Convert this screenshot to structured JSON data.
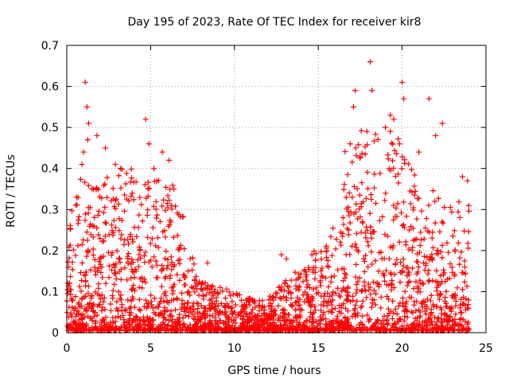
{
  "chart_data": {
    "type": "scatter",
    "title": "Day 195 of 2023, Rate Of TEC Index for receiver kir8",
    "xlabel": "GPS time / hours",
    "ylabel": "ROTI / TECUs",
    "xlim": [
      0,
      25
    ],
    "ylim": [
      0,
      0.7
    ],
    "xticks": [
      "0",
      "5",
      "10",
      "15",
      "20",
      "25"
    ],
    "yticks": [
      "0",
      "0.1",
      "0.2",
      "0.3",
      "0.4",
      "0.5",
      "0.6",
      "0.7"
    ],
    "grid": true,
    "marker": "+",
    "color": "#ff0000",
    "series": [
      {
        "values_note_excluded": true,
        "points": [
          [
            1.1,
            0.61
          ],
          [
            1.2,
            0.55
          ],
          [
            1.3,
            0.51
          ],
          [
            1.25,
            0.47
          ],
          [
            1.0,
            0.44
          ],
          [
            0.9,
            0.41
          ],
          [
            1.8,
            0.48
          ],
          [
            2.3,
            0.45
          ],
          [
            2.9,
            0.41
          ],
          [
            3.2,
            0.4
          ],
          [
            4.7,
            0.52
          ],
          [
            4.9,
            0.46
          ],
          [
            5.7,
            0.44
          ],
          [
            6.1,
            0.42
          ],
          [
            5.2,
            0.4
          ],
          [
            8.4,
            0.17
          ],
          [
            12.8,
            0.19
          ],
          [
            13.1,
            0.18
          ],
          [
            17.2,
            0.59
          ],
          [
            17.1,
            0.55
          ],
          [
            18.1,
            0.66
          ],
          [
            18.2,
            0.59
          ],
          [
            19.3,
            0.53
          ],
          [
            19.5,
            0.52
          ],
          [
            20.0,
            0.61
          ],
          [
            20.1,
            0.57
          ],
          [
            19.0,
            0.5
          ],
          [
            21.6,
            0.57
          ],
          [
            22.4,
            0.51
          ],
          [
            22.0,
            0.48
          ],
          [
            23.6,
            0.38
          ],
          [
            23.9,
            0.37
          ],
          [
            21.0,
            0.44
          ],
          [
            16.9,
            0.46
          ]
        ]
      }
    ]
  }
}
